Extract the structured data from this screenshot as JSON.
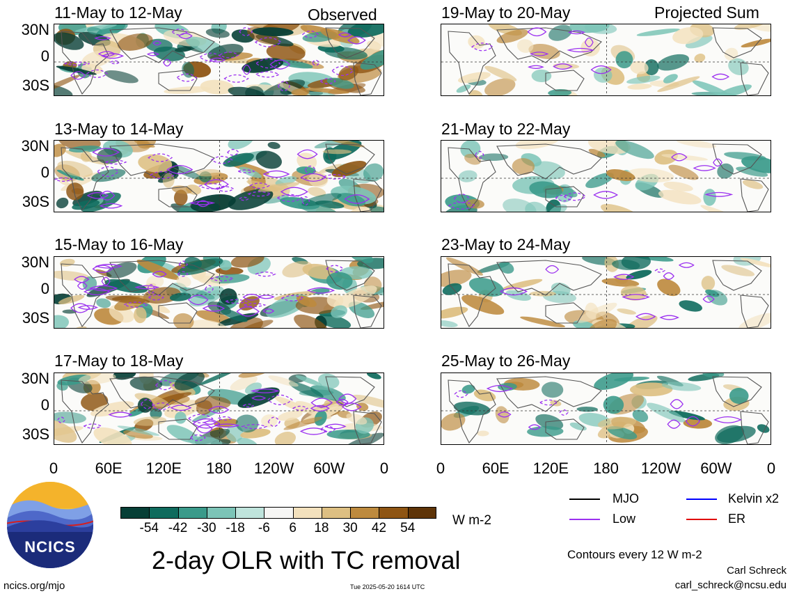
{
  "panels_left": [
    {
      "title": "11-May to 12-May",
      "corner": "Observed"
    },
    {
      "title": "13-May to 14-May",
      "corner": ""
    },
    {
      "title": "15-May to 16-May",
      "corner": ""
    },
    {
      "title": "17-May to 18-May",
      "corner": ""
    }
  ],
  "panels_right": [
    {
      "title": "19-May to 20-May",
      "corner": "Projected Sum"
    },
    {
      "title": "21-May to 22-May",
      "corner": ""
    },
    {
      "title": "23-May to 24-May",
      "corner": ""
    },
    {
      "title": "25-May to 26-May",
      "corner": ""
    }
  ],
  "lat_labels": [
    "30N",
    "0",
    "30S"
  ],
  "lon_labels": [
    "0",
    "60E",
    "120E",
    "180",
    "120W",
    "60W",
    "0"
  ],
  "colorbar": {
    "labels": [
      "-54",
      "-42",
      "-30",
      "-18",
      "-6",
      "6",
      "18",
      "30",
      "42",
      "54"
    ],
    "colors": [
      "#073f36",
      "#0f6b5d",
      "#3a9a8a",
      "#7cc4b7",
      "#bfe4dc",
      "#f6f6f4",
      "#f3e1bd",
      "#ddbf82",
      "#bd8a3e",
      "#8e5513",
      "#5e3408"
    ],
    "units": "W m-2"
  },
  "legend": [
    {
      "name": "MJO",
      "color": "#000000"
    },
    {
      "name": "Kelvin x2",
      "color": "#0000ff"
    },
    {
      "name": "Low",
      "color": "#9b30f0"
    },
    {
      "name": "ER",
      "color": "#e00000"
    }
  ],
  "contours_note": "Contours every 12 W m-2",
  "main_title": "2-day OLR with TC removal",
  "logo_text": "NCICS",
  "footer_left": "ncics.org/mjo",
  "footer_timestamp": "Tue 2025-05-20 1614 UTC",
  "author": "Carl Schreck",
  "author_email": "carl_schreck@ncsu.edu"
}
